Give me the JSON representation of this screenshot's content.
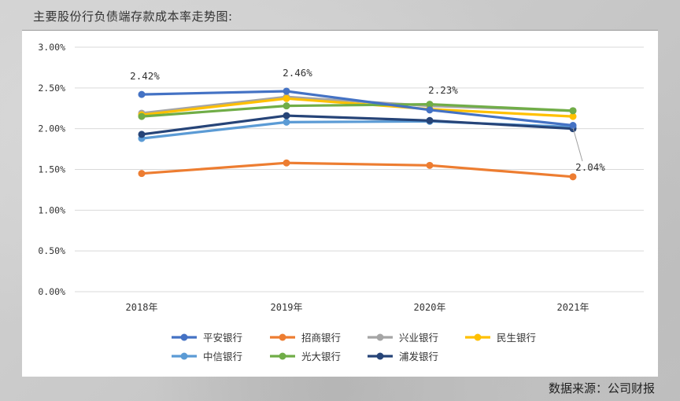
{
  "page": {
    "title": "主要股份行负债端存款成本率走势图:",
    "source": "数据来源：公司财报"
  },
  "chart_data": {
    "type": "line",
    "categories": [
      "2018年",
      "2019年",
      "2020年",
      "2021年"
    ],
    "ylim": [
      0,
      3.0
    ],
    "yticks": [
      0,
      0.5,
      1.0,
      1.5,
      2.0,
      2.5,
      3.0
    ],
    "ytick_labels": [
      "0.00%",
      "0.50%",
      "1.00%",
      "1.50%",
      "2.00%",
      "2.50%",
      "3.00%"
    ],
    "grid": "horizontal",
    "legend_position": "bottom",
    "series": [
      {
        "name": "平安银行",
        "color": "#4472c4",
        "values": [
          2.42,
          2.46,
          2.23,
          2.04
        ]
      },
      {
        "name": "招商银行",
        "color": "#ed7d31",
        "values": [
          1.45,
          1.58,
          1.55,
          1.41
        ]
      },
      {
        "name": "兴业银行",
        "color": "#a5a5a5",
        "values": [
          2.19,
          2.39,
          2.28,
          2.22
        ]
      },
      {
        "name": "民生银行",
        "color": "#ffc000",
        "values": [
          2.17,
          2.37,
          2.24,
          2.15
        ]
      },
      {
        "name": "中信银行",
        "color": "#5b9bd5",
        "values": [
          1.88,
          2.08,
          2.09,
          2.02
        ]
      },
      {
        "name": "光大银行",
        "color": "#70ad47",
        "values": [
          2.15,
          2.28,
          2.3,
          2.22
        ]
      },
      {
        "name": "浦发银行",
        "color": "#264478",
        "values": [
          1.93,
          2.16,
          2.1,
          2.0
        ]
      }
    ],
    "annotations": [
      {
        "text": "2.42%",
        "series": "平安银行",
        "x": "2018年",
        "y": 2.42
      },
      {
        "text": "2.46%",
        "series": "平安银行",
        "x": "2019年",
        "y": 2.46
      },
      {
        "text": "2.23%",
        "series": "平安银行",
        "x": "2020年",
        "y": 2.23
      },
      {
        "text": "2.04%",
        "series": "平安银行",
        "x": "2021年",
        "y": 2.04
      }
    ]
  }
}
